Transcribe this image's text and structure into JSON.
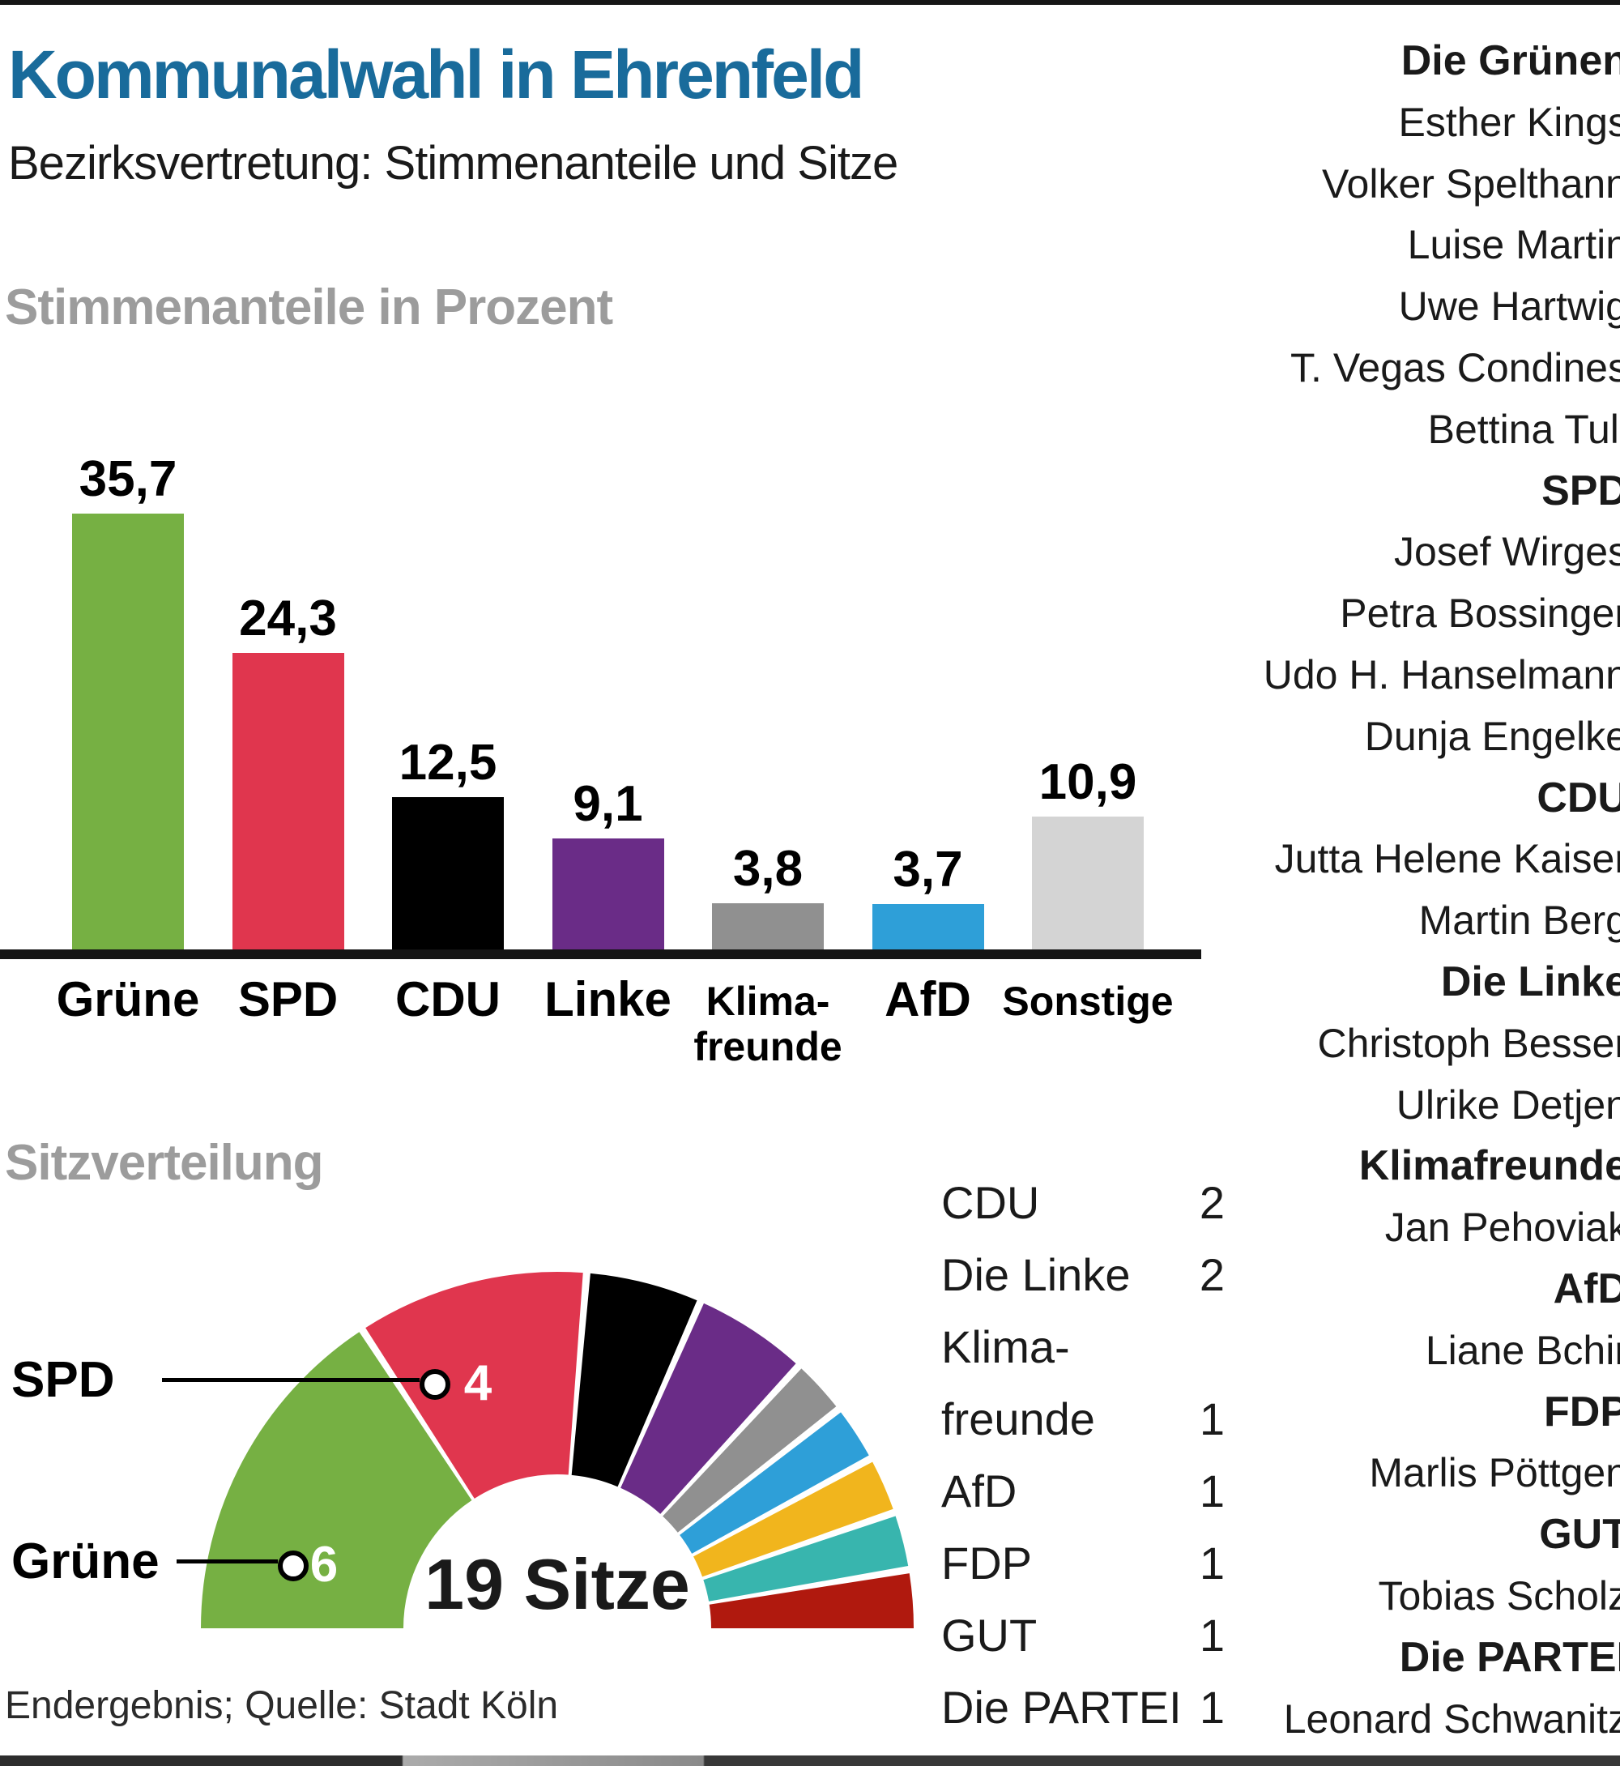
{
  "header": {
    "title": "Kommunalwahl in Ehrenfeld",
    "subtitle": "Bezirksvertretung: Stimmenanteile und Sitze"
  },
  "sections": {
    "votes_heading": "Stimmenanteile in Prozent",
    "seats_heading": "Sitzverteilung"
  },
  "footer": {
    "source": "Endergebnis; Quelle: Stadt Köln"
  },
  "colors": {
    "title_blue": "#196b9b",
    "heading_gray": "#9c9c9c",
    "gruene_green": "#76b043",
    "spd_red": "#e0364e",
    "cdu_black": "#000000",
    "linke_purple": "#6a2c87",
    "klima_gray": "#909090",
    "afd_blue": "#2e9fd8",
    "sonstige_lightgray": "#d4d4d4",
    "fdp_yellow": "#f1b51d",
    "gut_teal": "#38b5ae",
    "partei_darkred": "#b0190e"
  },
  "chart_data": [
    {
      "type": "bar",
      "title": "Stimmenanteile in Prozent",
      "categories": [
        "Grüne",
        "SPD",
        "CDU",
        "Linke",
        "Klima-\nfreunde",
        "AfD",
        "Sonstige"
      ],
      "values": [
        35.7,
        24.3,
        12.5,
        9.1,
        3.8,
        3.7,
        10.9
      ],
      "value_labels": [
        "35,7",
        "24,3",
        "12,5",
        "9,1",
        "3,8",
        "3,7",
        "10,9"
      ],
      "colors": [
        "#76b043",
        "#e0364e",
        "#000000",
        "#6a2c87",
        "#909090",
        "#2e9fd8",
        "#d4d4d4"
      ],
      "xlabel": "",
      "ylabel": "Stimmenanteile in Prozent",
      "unit": "%",
      "ylim": [
        0,
        40
      ],
      "grid": false
    },
    {
      "type": "pie",
      "variant": "half-donut",
      "title": "Sitzverteilung",
      "total_seats": 19,
      "total_label": "19 Sitze",
      "segments": [
        {
          "party": "Grüne",
          "seats": 6,
          "color": "#76b043"
        },
        {
          "party": "SPD",
          "seats": 4,
          "color": "#e0364e"
        },
        {
          "party": "CDU",
          "seats": 2,
          "color": "#000000"
        },
        {
          "party": "Die Linke",
          "seats": 2,
          "color": "#6a2c87"
        },
        {
          "party": "Klimafreunde",
          "seats": 1,
          "color": "#909090"
        },
        {
          "party": "AfD",
          "seats": 1,
          "color": "#2e9fd8"
        },
        {
          "party": "FDP",
          "seats": 1,
          "color": "#f1b51d"
        },
        {
          "party": "GUT",
          "seats": 1,
          "color": "#38b5ae"
        },
        {
          "party": "Die PARTEI",
          "seats": 1,
          "color": "#b0190e"
        }
      ],
      "callouts": [
        {
          "label": "SPD",
          "value": "4"
        },
        {
          "label": "Grüne",
          "value": "6"
        }
      ],
      "legend_position": "right",
      "legend": [
        {
          "label": "CDU",
          "value": "2"
        },
        {
          "label": "Die Linke",
          "value": "2"
        },
        {
          "label": "Klima-",
          "value": ""
        },
        {
          "label": "freunde",
          "value": "1"
        },
        {
          "label": "AfD",
          "value": "1"
        },
        {
          "label": "FDP",
          "value": "1"
        },
        {
          "label": "GUT",
          "value": "1"
        },
        {
          "label": "Die PARTEI",
          "value": "1"
        }
      ]
    }
  ],
  "candidates": {
    "groups": [
      {
        "party": "Die Grünen",
        "members": [
          "Esther Kings",
          "Volker Spelthann",
          "Luise Martin",
          "Uwe Hartwig",
          "T. Vegas Condines",
          "Bettina Tull"
        ]
      },
      {
        "party": "SPD",
        "members": [
          "Josef Wirges",
          "Petra Bossinger",
          "Udo H. Hanselmann",
          "Dunja Engelke"
        ]
      },
      {
        "party": "CDU",
        "members": [
          "Jutta Helene Kaiser",
          "Martin Berg"
        ]
      },
      {
        "party": "Die Linke",
        "members": [
          "Christoph Besser",
          "Ulrike Detjen"
        ]
      },
      {
        "party": "Klimafreunde",
        "members": [
          "Jan Pehoviak"
        ]
      },
      {
        "party": "AfD",
        "members": [
          "Liane Bchir"
        ]
      },
      {
        "party": "FDP",
        "members": [
          "Marlis Pöttgen"
        ]
      },
      {
        "party": "GUT",
        "members": [
          "Tobias Scholz"
        ]
      },
      {
        "party": "Die PARTEI",
        "members": [
          "Leonard Schwanitz"
        ]
      }
    ]
  }
}
